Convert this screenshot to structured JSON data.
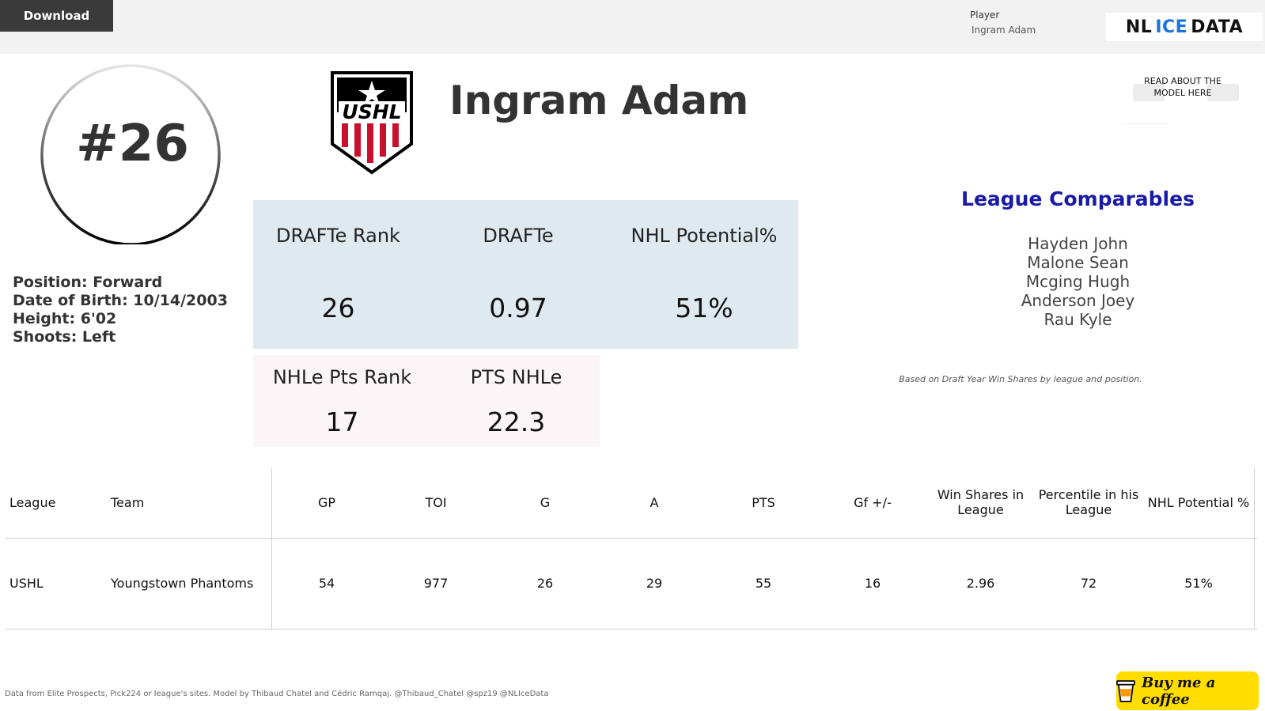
{
  "toolbar": {
    "download_label": "Download"
  },
  "filter": {
    "label": "Player",
    "value": "Ingram Adam"
  },
  "brand": {
    "part1": "NL",
    "part2": "ICE",
    "part3": "DATA"
  },
  "model_link": {
    "text": "READ ABOUT THE MODEL HERE"
  },
  "player": {
    "number": "#26",
    "name": "Ingram Adam",
    "league_logo_text": "USHL",
    "position": "Position: Forward",
    "dob": "Date of Birth: 10/14/2003",
    "height": "Height: 6'02",
    "shoots": "Shoots: Left"
  },
  "stats": {
    "drafte_rank_label": "DRAFTe Rank",
    "drafte_rank_value": "26",
    "drafte_label": "DRAFTe",
    "drafte_value": "0.97",
    "nhl_potential_label": "NHL Potential%",
    "nhl_potential_value": "51%",
    "nhle_pts_rank_label": "NHLe Pts Rank",
    "nhle_pts_rank_value": "17",
    "pts_nhle_label": "PTS NHLe",
    "pts_nhle_value": "22.3"
  },
  "comparables": {
    "title": "League Comparables",
    "players": [
      "Hayden John",
      "Malone Sean",
      "Mcging Hugh",
      "Anderson Joey",
      "Rau Kyle"
    ],
    "note": "Based on Draft Year Win Shares by league and position."
  },
  "table": {
    "headers": [
      "League",
      "Team",
      "GP",
      "TOI",
      "G",
      "A",
      "PTS",
      "Gf +/-",
      "Win Shares in League",
      "Percentile in his League",
      "NHL Potential %"
    ],
    "row": [
      "USHL",
      "Youngstown Phantoms",
      "54",
      "977",
      "26",
      "29",
      "55",
      "16",
      "2.96",
      "72",
      "51%"
    ]
  },
  "footer": {
    "note": "Data from Elite Prospects, Pick224 or league's sites. Model by Thibaud Chatel and Cédric Ramqaj. @Thibaud_Chatel @spz19 @NLIceData",
    "coffee_label": "Buy me a coffee"
  },
  "colors": {
    "accent_blue": "#1a1aa6",
    "card_blue": "#dfeaf0",
    "card_pink": "#fbf5f8",
    "coffee": "#ffdd00"
  }
}
